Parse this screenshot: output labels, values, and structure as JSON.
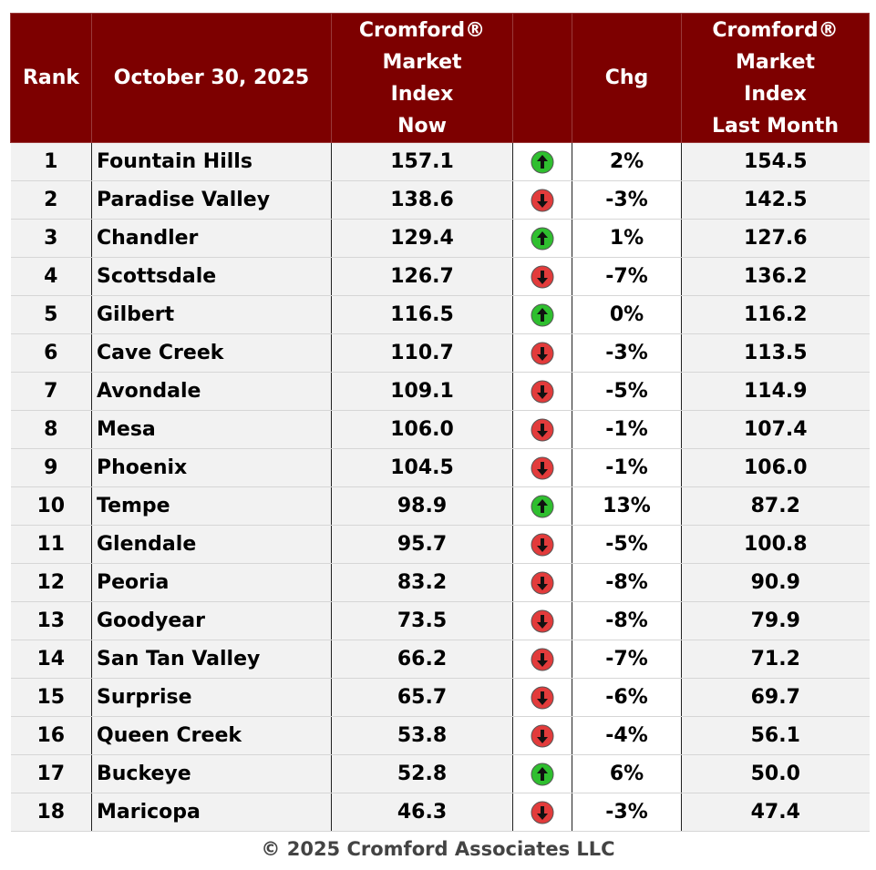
{
  "header": {
    "rank": "Rank",
    "date": "October 30, 2025",
    "now_lines": [
      "Cromford®",
      "Market",
      "Index",
      "Now"
    ],
    "chg": "Chg",
    "last_lines": [
      "Cromford®",
      "Market",
      "Index",
      "Last Month"
    ]
  },
  "colors": {
    "header_bg": "#7d0000",
    "up": "#2fbf2f",
    "down": "#e23b3b"
  },
  "rows": [
    {
      "rank": "1",
      "city": "Fountain Hills",
      "now": "157.1",
      "dir": "up-arrow-icon",
      "chg": "2%",
      "last": "154.5"
    },
    {
      "rank": "2",
      "city": "Paradise Valley",
      "now": "138.6",
      "dir": "down-arrow-icon",
      "chg": "-3%",
      "last": "142.5"
    },
    {
      "rank": "3",
      "city": "Chandler",
      "now": "129.4",
      "dir": "up-arrow-icon",
      "chg": "1%",
      "last": "127.6"
    },
    {
      "rank": "4",
      "city": "Scottsdale",
      "now": "126.7",
      "dir": "down-arrow-icon",
      "chg": "-7%",
      "last": "136.2"
    },
    {
      "rank": "5",
      "city": "Gilbert",
      "now": "116.5",
      "dir": "up-arrow-icon",
      "chg": "0%",
      "last": "116.2"
    },
    {
      "rank": "6",
      "city": "Cave Creek",
      "now": "110.7",
      "dir": "down-arrow-icon",
      "chg": "-3%",
      "last": "113.5"
    },
    {
      "rank": "7",
      "city": "Avondale",
      "now": "109.1",
      "dir": "down-arrow-icon",
      "chg": "-5%",
      "last": "114.9"
    },
    {
      "rank": "8",
      "city": "Mesa",
      "now": "106.0",
      "dir": "down-arrow-icon",
      "chg": "-1%",
      "last": "107.4"
    },
    {
      "rank": "9",
      "city": "Phoenix",
      "now": "104.5",
      "dir": "down-arrow-icon",
      "chg": "-1%",
      "last": "106.0"
    },
    {
      "rank": "10",
      "city": "Tempe",
      "now": "98.9",
      "dir": "up-arrow-icon",
      "chg": "13%",
      "last": "87.2"
    },
    {
      "rank": "11",
      "city": "Glendale",
      "now": "95.7",
      "dir": "down-arrow-icon",
      "chg": "-5%",
      "last": "100.8"
    },
    {
      "rank": "12",
      "city": "Peoria",
      "now": "83.2",
      "dir": "down-arrow-icon",
      "chg": "-8%",
      "last": "90.9"
    },
    {
      "rank": "13",
      "city": "Goodyear",
      "now": "73.5",
      "dir": "down-arrow-icon",
      "chg": "-8%",
      "last": "79.9"
    },
    {
      "rank": "14",
      "city": "San Tan Valley",
      "now": "66.2",
      "dir": "down-arrow-icon",
      "chg": "-7%",
      "last": "71.2"
    },
    {
      "rank": "15",
      "city": "Surprise",
      "now": "65.7",
      "dir": "down-arrow-icon",
      "chg": "-6%",
      "last": "69.7"
    },
    {
      "rank": "16",
      "city": "Queen Creek",
      "now": "53.8",
      "dir": "down-arrow-icon",
      "chg": "-4%",
      "last": "56.1"
    },
    {
      "rank": "17",
      "city": "Buckeye",
      "now": "52.8",
      "dir": "up-arrow-icon",
      "chg": "6%",
      "last": "50.0"
    },
    {
      "rank": "18",
      "city": "Maricopa",
      "now": "46.3",
      "dir": "down-arrow-icon",
      "chg": "-3%",
      "last": "47.4"
    }
  ],
  "footer": "© 2025 Cromford Associates LLC"
}
